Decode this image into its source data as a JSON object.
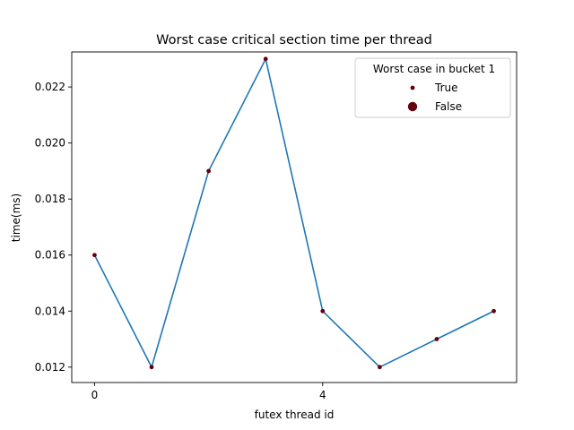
{
  "chart_data": {
    "type": "line",
    "title": "Worst case critical section time per thread",
    "xlabel": "futex thread id",
    "ylabel": "time(ms)",
    "x": [
      0,
      1,
      2,
      3,
      4,
      5,
      6,
      7
    ],
    "series": [
      {
        "values": [
          0.016,
          0.012,
          0.019,
          0.023,
          0.014,
          0.012,
          0.013,
          0.014
        ]
      }
    ],
    "xlim": [
      -0.4,
      7.4
    ],
    "ylim": [
      0.01145,
      0.02325
    ],
    "xticks": [
      "0",
      "4"
    ],
    "yticks": [
      "0.012",
      "0.014",
      "0.016",
      "0.018",
      "0.020",
      "0.022"
    ],
    "grid": false,
    "legend": {
      "title": "Worst case in bucket 1",
      "placement": "top-right",
      "entries": [
        "True",
        "False"
      ]
    },
    "colors": {
      "line": "#1f77b4",
      "marker": "#67000d"
    }
  }
}
